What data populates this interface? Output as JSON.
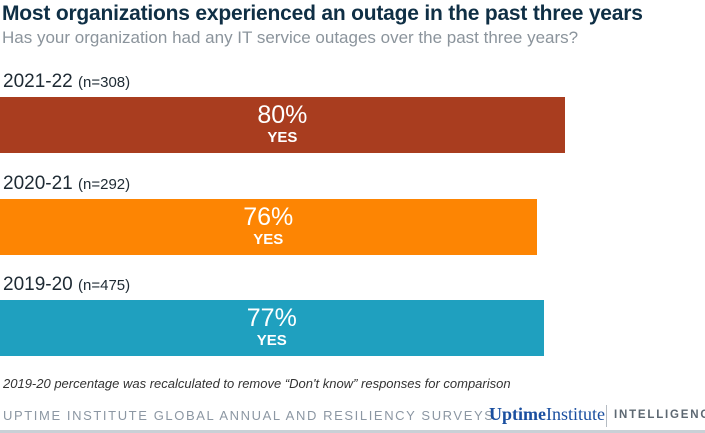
{
  "chart_data": {
    "type": "bar",
    "orientation": "horizontal",
    "title": "Most organizations experienced an outage in the past three years",
    "subtitle": "Has your organization had any IT service outages over the past three years?",
    "categories": [
      "2021-22",
      "2020-21",
      "2019-20"
    ],
    "sample_sizes": [
      "(n=308)",
      "(n=292)",
      "(n=475)"
    ],
    "values": [
      80,
      76,
      77
    ],
    "value_labels": [
      "80%",
      "76%",
      "77%"
    ],
    "bar_label": "YES",
    "colors": [
      "#a93d1f",
      "#fd8503",
      "#1fa0bf"
    ],
    "xlim": [
      0,
      100
    ],
    "grid": false,
    "note": "2019-20 percentage was recalculated to remove “Don't know” responses for comparison"
  },
  "footer": {
    "source": "UPTIME INSTITUTE GLOBAL ANNUAL AND RESILIENCY SURVEYS",
    "logo_uptime": "Uptime",
    "logo_institute": "Institute",
    "intelligence": "INTELLIGENCE"
  }
}
